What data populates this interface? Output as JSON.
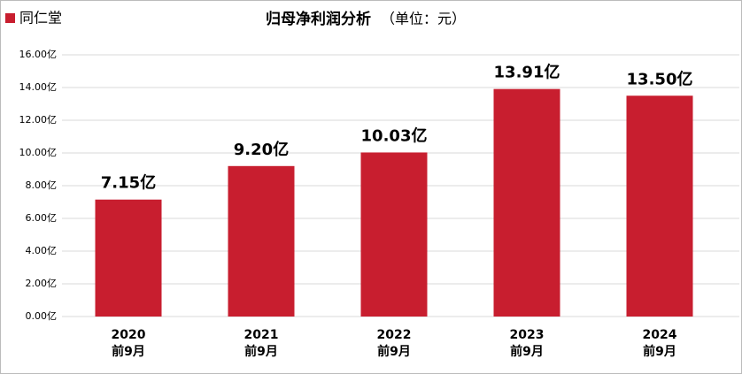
{
  "chart_data": {
    "type": "bar",
    "title": "归母净利润分析",
    "subtitle": "（单位：元）",
    "categories": [
      "2020\n前9月",
      "2021\n前9月",
      "2022\n前9月",
      "2023\n前9月",
      "2024\n前9月"
    ],
    "series": [
      {
        "name": "同仁堂",
        "color": "#c81e2f",
        "values": [
          7.15,
          9.2,
          10.03,
          13.91,
          13.5
        ],
        "value_labels": [
          "7.15亿",
          "9.20亿",
          "10.03亿",
          "13.91亿",
          "13.50亿"
        ]
      }
    ],
    "ylim": [
      0,
      16
    ],
    "yticks": [
      {
        "value": 0,
        "label": "0.00亿"
      },
      {
        "value": 2,
        "label": "2.00亿"
      },
      {
        "value": 4,
        "label": "4.00亿"
      },
      {
        "value": 6,
        "label": "6.00亿"
      },
      {
        "value": 8,
        "label": "8.00亿"
      },
      {
        "value": 10,
        "label": "10.00亿"
      },
      {
        "value": 12,
        "label": "12.00亿"
      },
      {
        "value": 14,
        "label": "14.00亿"
      },
      {
        "value": 16,
        "label": "16.00亿"
      }
    ],
    "grid": true,
    "legend": "top-left"
  }
}
